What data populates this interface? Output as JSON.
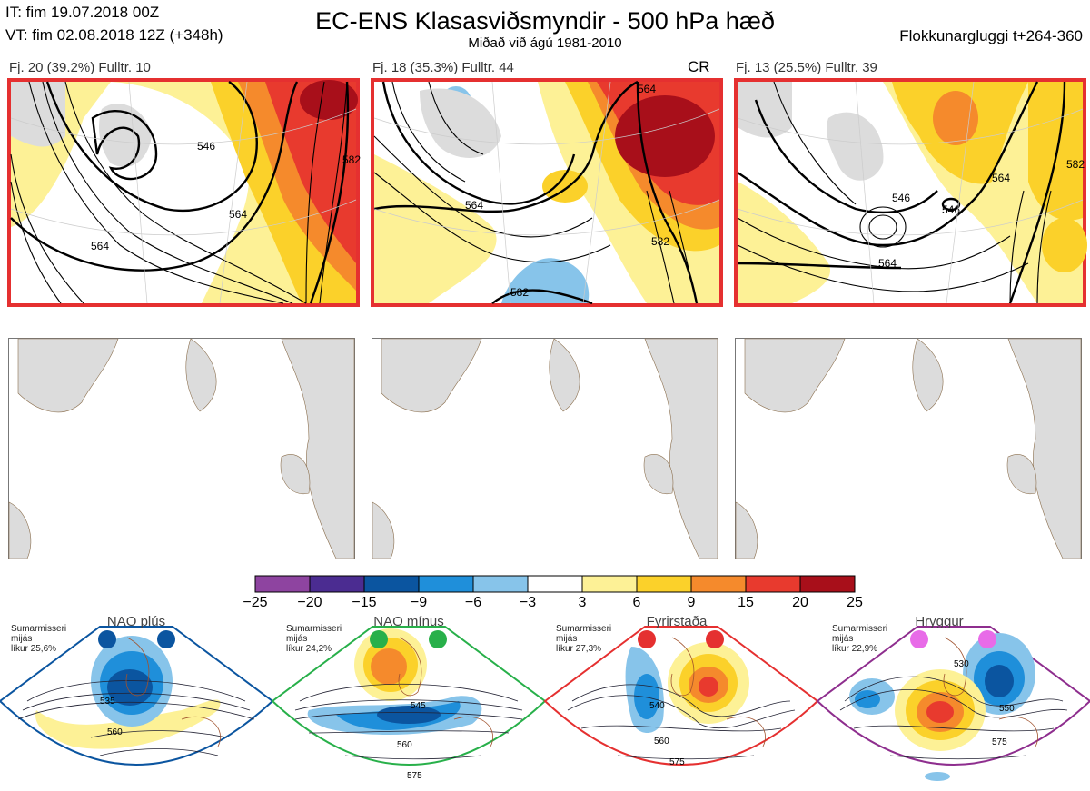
{
  "header": {
    "it": "IT: fim 19.07.2018 00Z",
    "vt": "VT: fim 02.08.2018 12Z  (+348h)",
    "title": "EC-ENS Klasasviðsmyndir - 500 hPa hæð",
    "subtitle": "Miðað við ágú 1981-2010",
    "window": "Flokkunargluggi t+264-360"
  },
  "clusters": [
    {
      "label": "Fj. 20 (39.2%)  Fulltr. 10",
      "tag": "",
      "contours": [
        "546",
        "564",
        "564",
        "582"
      ]
    },
    {
      "label": "Fj. 18 (35.3%)  Fulltr. 44",
      "tag": "CR",
      "contours": [
        "564",
        "564",
        "582",
        "582"
      ]
    },
    {
      "label": "Fj. 13 (25.5%)  Fulltr. 39",
      "tag": "",
      "contours": [
        "546",
        "546",
        "564",
        "564",
        "582"
      ]
    }
  ],
  "colorbar": {
    "ticks": [
      "−25",
      "−20",
      "−15",
      "−9",
      "−6",
      "−3",
      "3",
      "6",
      "9",
      "15",
      "20",
      "25"
    ],
    "colors": [
      "#8e44a0",
      "#4b2c91",
      "#0b55a0",
      "#1f8fda",
      "#87c4ea",
      "#ffffff",
      "#fdf196",
      "#fbd12a",
      "#f58a2c",
      "#e83a2e",
      "#a80f1a"
    ]
  },
  "regimes": [
    {
      "title": "NAO plús",
      "note": [
        "Sumarmisseri",
        "mijás",
        "líkur 25,6%"
      ],
      "color": "#0b55a0",
      "contours": [
        "535",
        "560"
      ]
    },
    {
      "title": "NAO mínus",
      "note": [
        "Sumarmisseri",
        "mijás",
        "líkur 24,2%"
      ],
      "color": "#28b04a",
      "contours": [
        "545",
        "560",
        "575"
      ]
    },
    {
      "title": "Fyrirstaða",
      "note": [
        "Sumarmisseri",
        "mijás",
        "líkur 27,3%"
      ],
      "color": "#e53030",
      "contours": [
        "540",
        "560",
        "575"
      ]
    },
    {
      "title": "Hryggur",
      "note": [
        "Sumarmisseri",
        "mijás",
        "líkur 22,9%"
      ],
      "color": "#e86be8",
      "contours": [
        "530",
        "550",
        "575"
      ]
    }
  ]
}
